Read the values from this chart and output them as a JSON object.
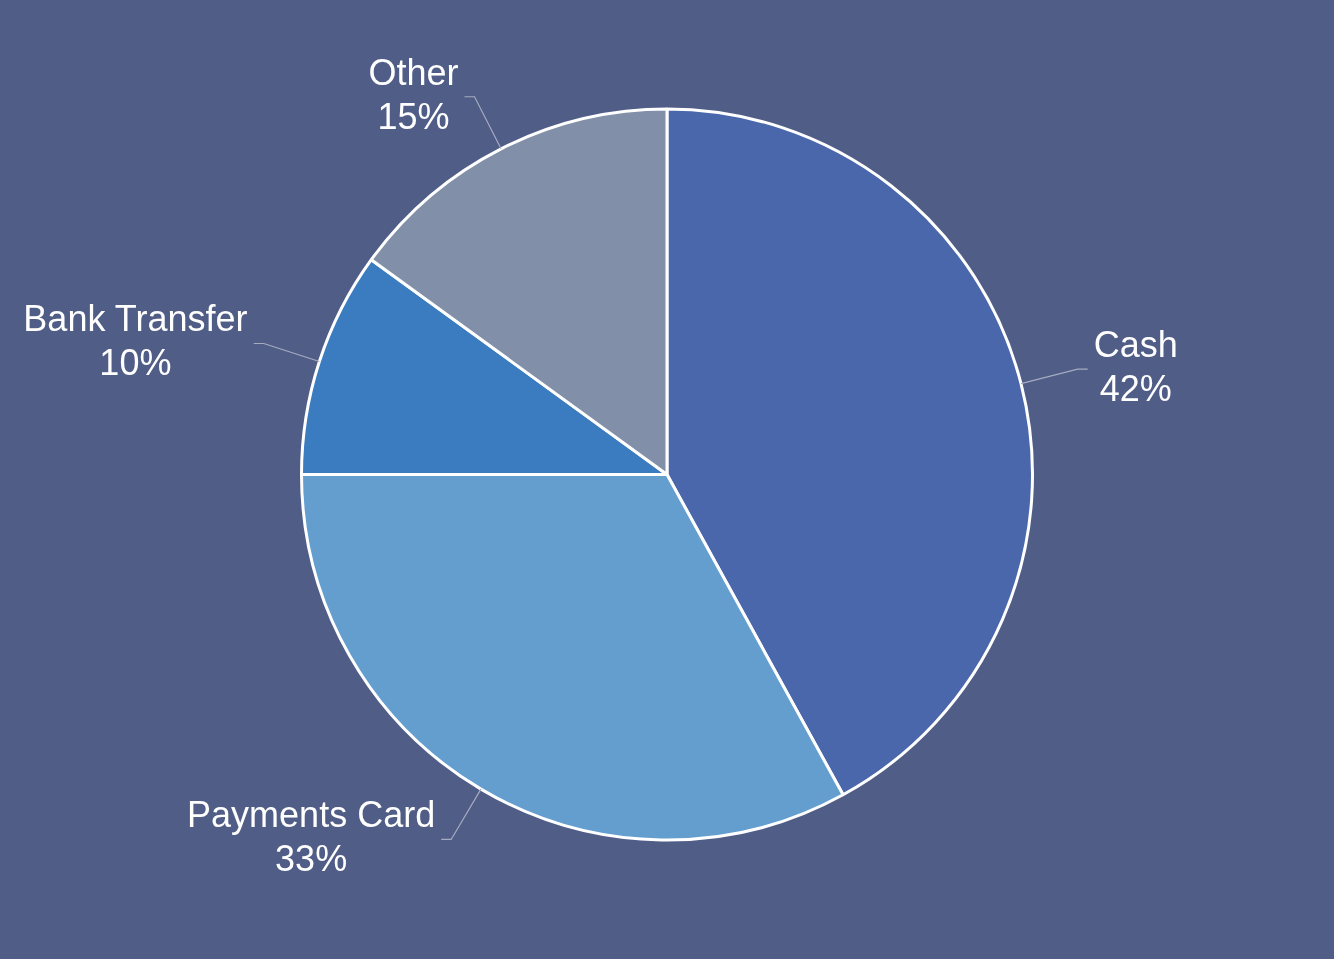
{
  "chart_data": {
    "type": "pie",
    "categories": [
      "Cash",
      "Payments Card",
      "Bank Transfer",
      "Other"
    ],
    "values": [
      42,
      33,
      10,
      15
    ],
    "colors": [
      "#4a67ac",
      "#639ecf",
      "#3b7bbf",
      "#8190a8"
    ],
    "value_labels": [
      "42%",
      "33%",
      "10%",
      "15%"
    ],
    "legend": false
  }
}
